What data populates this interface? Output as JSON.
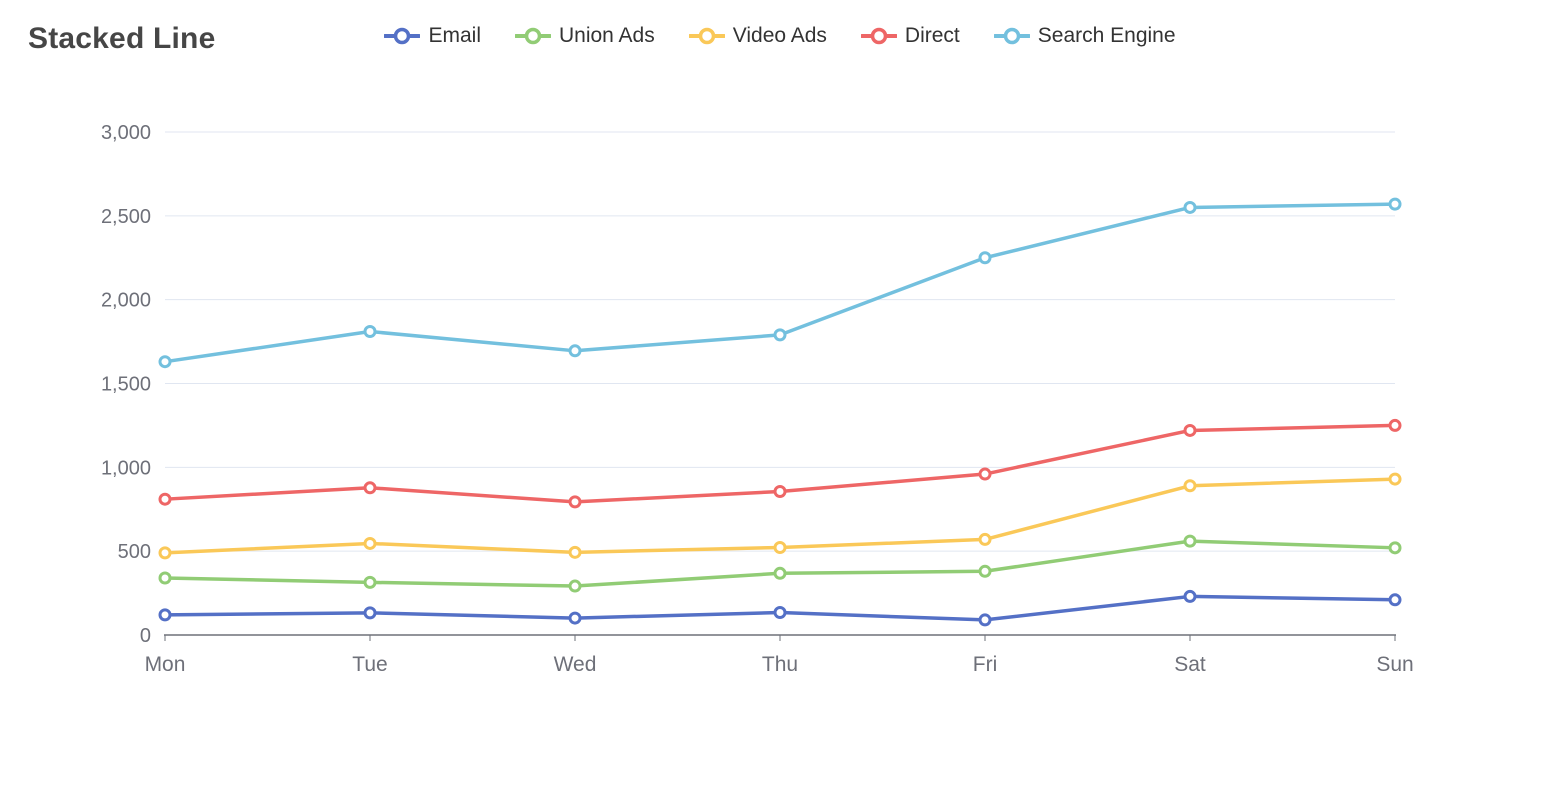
{
  "chart_data": {
    "type": "line",
    "title": "Stacked Line",
    "stacked": true,
    "legend_position": "top",
    "grid": true,
    "categories": [
      "Mon",
      "Tue",
      "Wed",
      "Thu",
      "Fri",
      "Sat",
      "Sun"
    ],
    "series": [
      {
        "name": "Email",
        "color": "#5470c6",
        "values": [
          120,
          132,
          101,
          134,
          90,
          230,
          210
        ],
        "stacked_totals": [
          120,
          132,
          101,
          134,
          90,
          230,
          210
        ]
      },
      {
        "name": "Union Ads",
        "color": "#91cc75",
        "values": [
          220,
          182,
          191,
          234,
          290,
          330,
          310
        ],
        "stacked_totals": [
          340,
          314,
          292,
          368,
          380,
          560,
          520
        ]
      },
      {
        "name": "Video Ads",
        "color": "#fac858",
        "values": [
          150,
          232,
          201,
          154,
          190,
          330,
          410
        ],
        "stacked_totals": [
          490,
          546,
          493,
          522,
          570,
          890,
          930
        ]
      },
      {
        "name": "Direct",
        "color": "#ee6666",
        "values": [
          320,
          332,
          301,
          334,
          390,
          330,
          320
        ],
        "stacked_totals": [
          810,
          878,
          794,
          856,
          960,
          1220,
          1250
        ]
      },
      {
        "name": "Search Engine",
        "color": "#73c0de",
        "values": [
          820,
          932,
          901,
          934,
          1290,
          1330,
          1320
        ],
        "stacked_totals": [
          1630,
          1810,
          1695,
          1790,
          2250,
          2550,
          2570
        ]
      }
    ],
    "ylim": [
      0,
      3000
    ],
    "yticks": [
      0,
      500,
      1000,
      1500,
      2000,
      2500,
      3000
    ],
    "ytick_labels": [
      "0",
      "500",
      "1,000",
      "1,500",
      "2,000",
      "2,500",
      "3,000"
    ],
    "xlabel": "",
    "ylabel": "",
    "colors": {
      "axis_label": "#6E7079",
      "axis_line": "#6E7079",
      "gridline": "#E0E6F1",
      "title_text": "#464646",
      "legend_text": "#333333",
      "background": "#ffffff"
    }
  }
}
